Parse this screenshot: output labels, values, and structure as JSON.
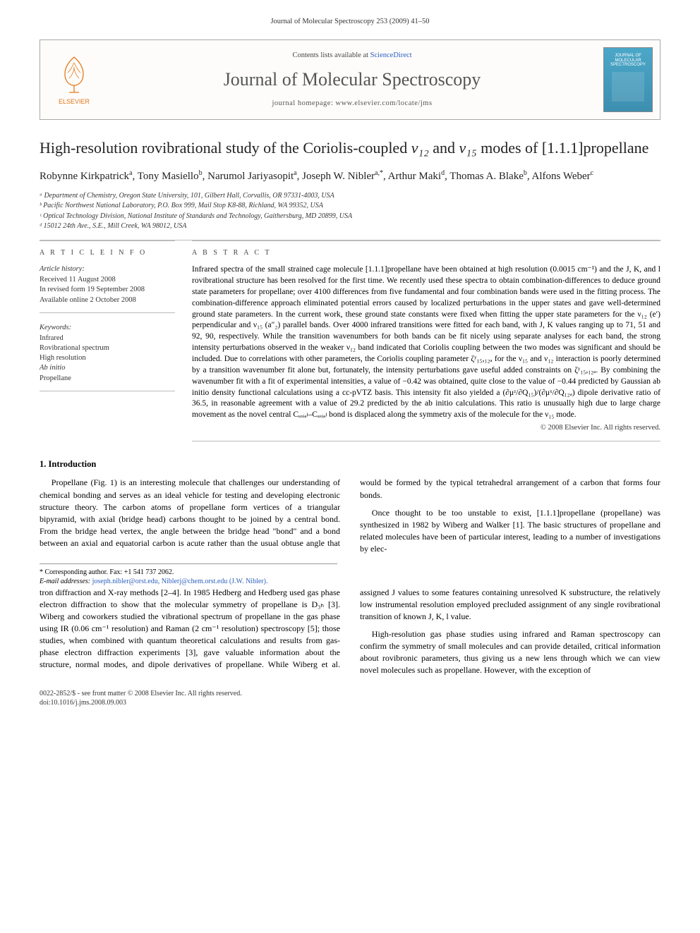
{
  "running_head": "Journal of Molecular Spectroscopy 253 (2009) 41–50",
  "header": {
    "contents_prefix": "Contents lists available at ",
    "contents_link": "ScienceDirect",
    "journal_title": "Journal of Molecular Spectroscopy",
    "homepage_label": "journal homepage: www.elsevier.com/locate/jms",
    "publisher_name": "ELSEVIER",
    "thumb_line1": "JOURNAL OF",
    "thumb_line2": "MOLECULAR",
    "thumb_line3": "SPECTROSCOPY"
  },
  "title_parts": {
    "pre": "High-resolution rovibrational study of the Coriolis-coupled ",
    "v12": "ν₁₂",
    "mid": " and ",
    "v15": "ν₁₅",
    "post": " modes of [1.1.1]propellane"
  },
  "authors_html": "Robynne Kirkpatrick<sup>a</sup>, Tony Masiello<sup>b</sup>, Narumol Jariyasopit<sup>a</sup>, Joseph W. Nibler<sup>a,*</sup>, Arthur Maki<sup>d</sup>, Thomas A. Blake<sup>b</sup>, Alfons Weber<sup>c</sup>",
  "affiliations": [
    "ᵃ Department of Chemistry, Oregon State University, 101, Gilbert Hall, Corvallis, OR 97331-4003, USA",
    "ᵇ Pacific Northwest National Laboratory, P.O. Box 999, Mail Stop K8-88, Richland, WA 99352, USA",
    "ᶜ Optical Technology Division, National Institute of Standards and Technology, Gaithersburg, MD 20899, USA",
    "ᵈ 15012 24th Ave., S.E., Mill Creek, WA 98012, USA"
  ],
  "info": {
    "head_left": "A R T I C L E   I N F O",
    "head_right": "A B S T R A C T",
    "history_hdr": "Article history:",
    "history_lines": [
      "Received 11 August 2008",
      "In revised form 19 September 2008",
      "Available online 2 October 2008"
    ],
    "keywords_hdr": "Keywords:",
    "keywords": [
      "Infrared",
      "Rovibrational spectrum",
      "High resolution",
      "Ab initio",
      "Propellane"
    ]
  },
  "abstract": "Infrared spectra of the small strained cage molecule [1.1.1]propellane have been obtained at high resolution (0.0015 cm⁻¹) and the J, K, and l rovibrational structure has been resolved for the first time. We recently used these spectra to obtain combination-differences to deduce ground state parameters for propellane; over 4100 differences from five fundamental and four combination bands were used in the fitting process. The combination-difference approach eliminated potential errors caused by localized perturbations in the upper states and gave well-determined ground state parameters. In the current work, these ground state constants were fixed when fitting the upper state parameters for the ν₁₂ (e′) perpendicular and ν₁₅ (a″₂) parallel bands. Over 4000 infrared transitions were fitted for each band, with J, K values ranging up to 71, 51 and 92, 90, respectively. While the transition wavenumbers for both bands can be fit nicely using separate analyses for each band, the strong intensity perturbations observed in the weaker ν₁₂ band indicated that Coriolis coupling between the two modes was significant and should be included. Due to correlations with other parameters, the Coriolis coupling parameter ζʸ₁₅,₁₂ₐ for the ν₁₅ and ν₁₂ interaction is poorly determined by a transition wavenumber fit alone but, fortunately, the intensity perturbations gave useful added constraints on ζʸ₁₅,₁₂ₐ. By combining the wavenumber fit with a fit of experimental intensities, a value of −0.42 was obtained, quite close to the value of −0.44 predicted by Gaussian ab initio density functional calculations using a cc-pVTZ basis. This intensity fit also yielded a (∂μᶻ/∂Q₁₅)/(∂μˣ/∂Q₁₂ₐ) dipole derivative ratio of 36.5, in reasonable agreement with a value of 29.2 predicted by the ab initio calculations. This ratio is unusually high due to large charge movement as the novel central Cₐₓᵢₐₗ–Cₐₓᵢₐₗ bond is displaced along the symmetry axis of the molecule for the ν₁₅ mode.",
  "abstract_copyright": "© 2008 Elsevier Inc. All rights reserved.",
  "section1_head": "1. Introduction",
  "body": {
    "p1": "Propellane (Fig. 1) is an interesting molecule that challenges our understanding of chemical bonding and serves as an ideal vehicle for testing and developing electronic structure theory. The carbon atoms of propellane form vertices of a triangular bipyramid, with axial (bridge head) carbons thought to be joined by a central bond. From the bridge head vertex, the angle between the bridge head \"bond\" and a bond between an axial and equatorial carbon is acute rather than the usual obtuse angle that would be formed by the typical tetrahedral arrangement of a carbon that forms four bonds.",
    "p2": "Once thought to be too unstable to exist, [1.1.1]propellane (propellane) was synthesized in 1982 by Wiberg and Walker [1]. The basic structures of propellane and related molecules have been of particular interest, leading to a number of investigations by elec-",
    "p3": "tron diffraction and X-ray methods [2–4]. In 1985 Hedberg and Hedberg used gas phase electron diffraction to show that the molecular symmetry of propellane is D₃ₕ [3]. Wiberg and coworkers studied the vibrational spectrum of propellane in the gas phase using IR (0.06 cm⁻¹ resolution) and Raman (2 cm⁻¹ resolution) spectroscopy [5]; those studies, when combined with quantum theoretical calculations and results from gas-phase electron diffraction experiments [3], gave valuable information about the structure, normal modes, and dipole derivatives of propellane. While Wiberg et al. assigned J values to some features containing unresolved K substructure, the relatively low instrumental resolution employed precluded assignment of any single rovibrational transition of known J, K, l value.",
    "p4": "High-resolution gas phase studies using infrared and Raman spectroscopy can confirm the symmetry of small molecules and can provide detailed, critical information about rovibronic parameters, thus giving us a new lens through which we can view novel molecules such as propellane. However, with the exception of"
  },
  "footnote": {
    "corr": "* Corresponding author. Fax: +1 541 737 2062.",
    "email_label": "E-mail addresses:",
    "emails": "joseph.nibler@orst.edu, Niblerj@chem.orst.edu (J.W. Nibler)."
  },
  "footer": {
    "line1": "0022-2852/$ - see front matter © 2008 Elsevier Inc. All rights reserved.",
    "line2": "doi:10.1016/j.jms.2008.09.003"
  },
  "colors": {
    "link": "#2a5fbf",
    "rule": "#bbbbbb",
    "elsevier_orange": "#e67817",
    "thumb_bg": "#4ba7c8"
  }
}
